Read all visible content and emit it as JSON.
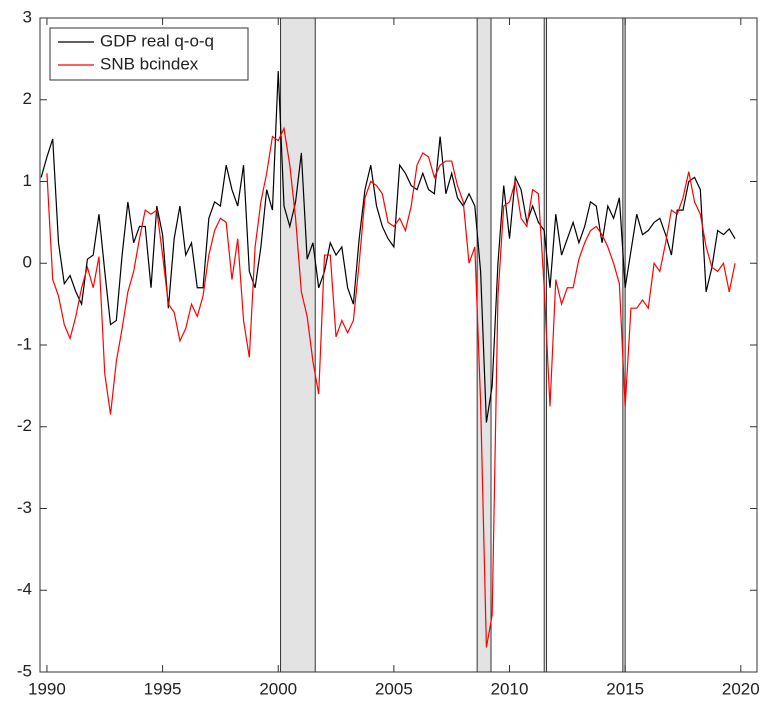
{
  "chart_data": {
    "type": "line",
    "x": [
      1989.75,
      1990,
      1990.25,
      1990.5,
      1990.75,
      1991,
      1991.25,
      1991.5,
      1991.75,
      1992,
      1992.25,
      1992.5,
      1992.75,
      1993,
      1993.25,
      1993.5,
      1993.75,
      1994,
      1994.25,
      1994.5,
      1994.75,
      1995,
      1995.25,
      1995.5,
      1995.75,
      1996,
      1996.25,
      1996.5,
      1996.75,
      1997,
      1997.25,
      1997.5,
      1997.75,
      1998,
      1998.25,
      1998.5,
      1998.75,
      1999,
      1999.25,
      1999.5,
      1999.75,
      2000,
      2000.25,
      2000.5,
      2000.75,
      2001,
      2001.25,
      2001.5,
      2001.75,
      2002,
      2002.25,
      2002.5,
      2002.75,
      2003,
      2003.25,
      2003.5,
      2003.75,
      2004,
      2004.25,
      2004.5,
      2004.75,
      2005,
      2005.25,
      2005.5,
      2005.75,
      2006,
      2006.25,
      2006.5,
      2006.75,
      2007,
      2007.25,
      2007.5,
      2007.75,
      2008,
      2008.25,
      2008.5,
      2008.75,
      2009,
      2009.25,
      2009.5,
      2009.75,
      2010,
      2010.25,
      2010.5,
      2010.75,
      2011,
      2011.25,
      2011.5,
      2011.75,
      2012,
      2012.25,
      2012.5,
      2012.75,
      2013,
      2013.25,
      2013.5,
      2013.75,
      2014,
      2014.25,
      2014.5,
      2014.75,
      2015,
      2015.25,
      2015.5,
      2015.75,
      2016,
      2016.25,
      2016.5,
      2016.75,
      2017,
      2017.25,
      2017.5,
      2017.75,
      2018,
      2018.25,
      2018.5,
      2018.75,
      2019,
      2019.25,
      2019.5,
      2019.75
    ],
    "series": [
      {
        "name": "GDP real q-o-q",
        "color": "#000000",
        "values": [
          1.05,
          1.3,
          1.52,
          0.25,
          -0.25,
          -0.15,
          -0.35,
          -0.5,
          0.05,
          0.1,
          0.6,
          -0.1,
          -0.75,
          -0.7,
          0.1,
          0.75,
          0.25,
          0.45,
          0.45,
          -0.3,
          0.7,
          0.35,
          -0.55,
          0.3,
          0.7,
          0.1,
          0.25,
          -0.3,
          -0.3,
          0.55,
          0.75,
          0.7,
          1.2,
          0.9,
          0.7,
          1.2,
          -0.1,
          -0.3,
          0.2,
          0.9,
          0.65,
          2.35,
          0.7,
          0.45,
          0.75,
          1.35,
          0.05,
          0.25,
          -0.3,
          -0.1,
          0.25,
          0.1,
          0.2,
          -0.3,
          -0.5,
          0.3,
          0.9,
          1.2,
          0.7,
          0.45,
          0.3,
          0.2,
          1.2,
          1.1,
          0.95,
          0.9,
          1.1,
          0.9,
          0.85,
          1.55,
          0.85,
          1.1,
          0.8,
          0.7,
          0.85,
          0.7,
          -0.1,
          -1.95,
          -1.5,
          0.0,
          0.95,
          0.3,
          1.05,
          0.9,
          0.5,
          0.7,
          0.5,
          0.4,
          -0.3,
          0.6,
          0.1,
          0.3,
          0.5,
          0.25,
          0.45,
          0.75,
          0.7,
          0.25,
          0.7,
          0.55,
          0.8,
          -0.3,
          0.15,
          0.6,
          0.35,
          0.4,
          0.5,
          0.55,
          0.35,
          0.1,
          0.65,
          0.65,
          1.0,
          1.05,
          0.9,
          -0.35,
          -0.05,
          0.4,
          0.35,
          0.42,
          0.3
        ]
      },
      {
        "name": "SNB bcindex",
        "color": "#ff0000",
        "values": [
          null,
          1.1,
          -0.2,
          -0.4,
          -0.75,
          -0.92,
          -0.65,
          -0.3,
          -0.05,
          -0.3,
          0.08,
          -1.35,
          -1.85,
          -1.2,
          -0.8,
          -0.35,
          -0.1,
          0.3,
          0.65,
          0.6,
          0.65,
          0.1,
          -0.5,
          -0.6,
          -0.95,
          -0.8,
          -0.5,
          -0.65,
          -0.4,
          0.1,
          0.4,
          0.55,
          0.5,
          -0.2,
          0.3,
          -0.7,
          -1.15,
          0.2,
          0.75,
          1.1,
          1.55,
          1.5,
          1.65,
          1.2,
          0.55,
          -0.35,
          -0.65,
          -1.2,
          -1.6,
          0.1,
          0.1,
          -0.9,
          -0.7,
          -0.85,
          -0.7,
          0.0,
          0.8,
          1.0,
          0.95,
          0.85,
          0.5,
          0.45,
          0.55,
          0.4,
          0.7,
          1.2,
          1.35,
          1.3,
          1.05,
          1.2,
          1.25,
          1.25,
          0.95,
          0.75,
          0.0,
          0.2,
          -1.7,
          -4.7,
          -4.3,
          -0.4,
          0.7,
          0.75,
          1.0,
          0.55,
          0.45,
          0.9,
          0.85,
          -0.3,
          -1.75,
          -0.2,
          -0.5,
          -0.3,
          -0.3,
          0.05,
          0.25,
          0.4,
          0.45,
          0.35,
          0.2,
          0.0,
          -0.25,
          -1.75,
          -0.55,
          -0.55,
          -0.45,
          -0.55,
          0.0,
          -0.1,
          0.25,
          0.65,
          0.6,
          0.8,
          1.12,
          0.75,
          0.6,
          0.2,
          -0.05,
          -0.1,
          0.0,
          -0.35,
          0.0
        ]
      }
    ],
    "shaded_regions": [
      [
        2000.1,
        2001.6
      ],
      [
        2008.6,
        2009.2
      ],
      [
        2011.5,
        2011.6
      ],
      [
        2014.9,
        2015.0
      ]
    ],
    "xlim": [
      1989.7,
      2020.7
    ],
    "xticks": [
      1990,
      1995,
      2000,
      2005,
      2010,
      2015,
      2020
    ],
    "ylim": [
      -5,
      3
    ],
    "yticks": [
      -5,
      -4,
      -3,
      -2,
      -1,
      0,
      1,
      2,
      3
    ],
    "legend": "northwest"
  }
}
